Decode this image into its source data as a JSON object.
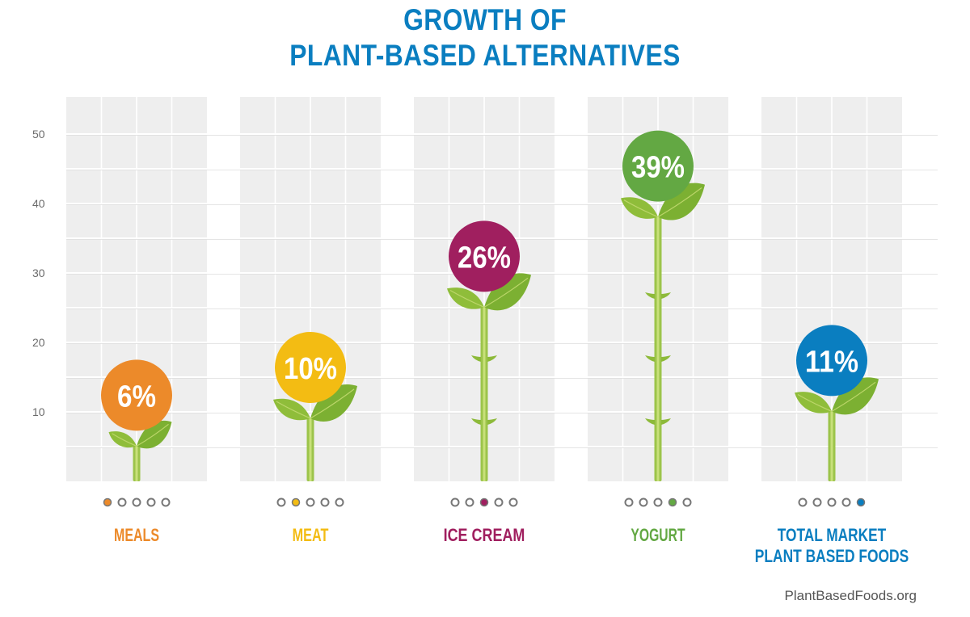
{
  "chart_data": {
    "type": "bar",
    "title_lines": [
      "GROWTH OF",
      "PLANT-BASED ALTERNATIVES"
    ],
    "categories": [
      "MEALS",
      "MEAT",
      "ICE CREAM",
      "YOGURT",
      "TOTAL MARKET PLANT BASED FOODS"
    ],
    "category_label_lines": [
      [
        "MEALS"
      ],
      [
        "MEAT"
      ],
      [
        "ICE CREAM"
      ],
      [
        "YOGURT"
      ],
      [
        "TOTAL MARKET",
        "PLANT BASED FOODS"
      ]
    ],
    "values": [
      6,
      10,
      26,
      39,
      11
    ],
    "data_labels": [
      "6%",
      "10%",
      "26%",
      "39%",
      "11%"
    ],
    "colors": [
      "#ec8a2a",
      "#f3bc13",
      "#a01f5f",
      "#63a843",
      "#0a7ec0"
    ],
    "ylim": [
      0,
      55
    ],
    "yticks": [
      "10",
      "20",
      "30",
      "40",
      "50"
    ],
    "ytick_values": [
      10,
      20,
      30,
      40,
      50
    ],
    "grid": true,
    "legend": "none"
  },
  "source": "PlantBasedFoods.org"
}
